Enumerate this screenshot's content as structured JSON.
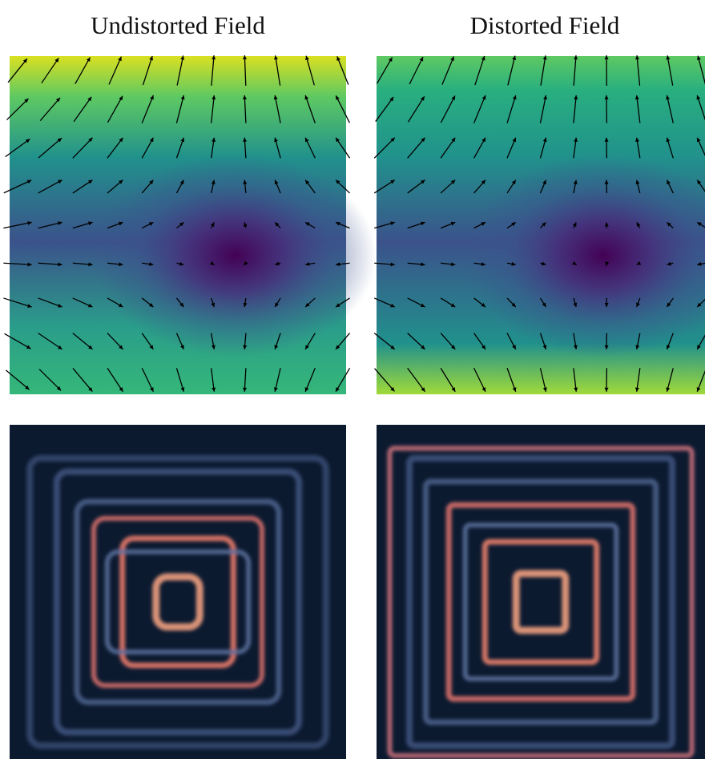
{
  "panels": [
    {
      "title": "Undistorted Field"
    },
    {
      "title": "Distorted Field"
    }
  ]
}
